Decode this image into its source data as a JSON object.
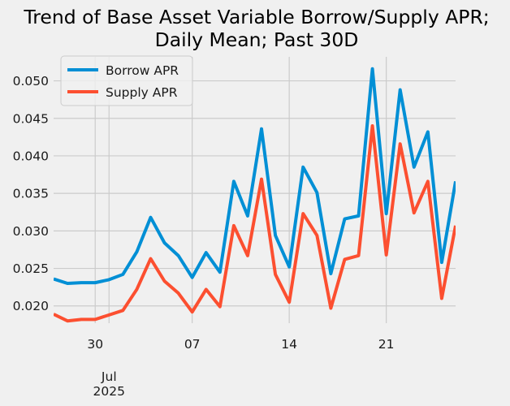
{
  "chart_data": {
    "type": "line",
    "title": [
      "Trend of Base Asset Variable Borrow/Supply APR;",
      "Daily Mean; Past 30D"
    ],
    "xlabel": "",
    "ylabel": "",
    "x": [
      "2025-06-27",
      "2025-06-28",
      "2025-06-29",
      "2025-06-30",
      "2025-07-01",
      "2025-07-02",
      "2025-07-03",
      "2025-07-04",
      "2025-07-05",
      "2025-07-06",
      "2025-07-07",
      "2025-07-08",
      "2025-07-09",
      "2025-07-10",
      "2025-07-11",
      "2025-07-12",
      "2025-07-13",
      "2025-07-14",
      "2025-07-15",
      "2025-07-16",
      "2025-07-17",
      "2025-07-18",
      "2025-07-19",
      "2025-07-20",
      "2025-07-21",
      "2025-07-22",
      "2025-07-23",
      "2025-07-24",
      "2025-07-25",
      "2025-07-26"
    ],
    "xlim": [
      "2025-06-27",
      "2025-07-26"
    ],
    "x_ticks": [
      {
        "date": "2025-06-30",
        "label": "30"
      },
      {
        "date": "2025-07-07",
        "label": "07"
      },
      {
        "date": "2025-07-14",
        "label": "14"
      },
      {
        "date": "2025-07-21",
        "label": "21"
      }
    ],
    "x_major_tick": {
      "date": "2025-07-01",
      "label": [
        "Jul",
        "2025"
      ]
    },
    "ylim": [
      0.0177,
      0.0532
    ],
    "y_ticks": [
      "0.020",
      "0.025",
      "0.030",
      "0.035",
      "0.040",
      "0.045",
      "0.050"
    ],
    "grid": true,
    "legend_position": "upper-left",
    "series": [
      {
        "name": "Borrow APR",
        "color": "#008fd5",
        "values": [
          0.0236,
          0.023,
          0.0231,
          0.0231,
          0.0235,
          0.0242,
          0.0272,
          0.0318,
          0.0284,
          0.0267,
          0.0238,
          0.0271,
          0.0245,
          0.0366,
          0.032,
          0.0436,
          0.0294,
          0.0252,
          0.0385,
          0.0351,
          0.0243,
          0.0316,
          0.032,
          0.0516,
          0.0323,
          0.0488,
          0.0385,
          0.0432,
          0.0258,
          0.0366
        ]
      },
      {
        "name": "Supply APR",
        "color": "#fc4f30",
        "values": [
          0.0189,
          0.018,
          0.0182,
          0.0182,
          0.0188,
          0.0194,
          0.0222,
          0.0263,
          0.0233,
          0.0217,
          0.0192,
          0.0222,
          0.0199,
          0.0307,
          0.0267,
          0.0369,
          0.0242,
          0.0205,
          0.0323,
          0.0294,
          0.0197,
          0.0262,
          0.0267,
          0.044,
          0.0268,
          0.0416,
          0.0324,
          0.0366,
          0.021,
          0.0307
        ]
      }
    ]
  }
}
